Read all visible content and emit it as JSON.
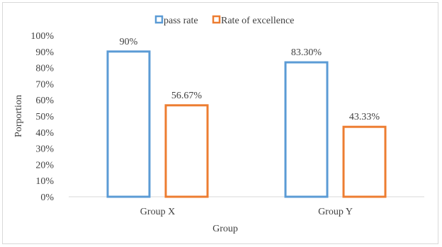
{
  "chart_data": {
    "type": "bar",
    "title": "",
    "xlabel": "Group",
    "ylabel": "Porportion",
    "categories": [
      "Group X",
      "Group Y"
    ],
    "series": [
      {
        "name": "pass rate",
        "color": "#5b9bd5",
        "values": [
          90,
          83.3
        ],
        "labels": [
          "90%",
          "83.30%"
        ]
      },
      {
        "name": "Rate of excellence",
        "color": "#ed7d31",
        "values": [
          56.67,
          43.33
        ],
        "labels": [
          "56.67%",
          "43.33%"
        ]
      }
    ],
    "ylim": [
      0,
      100
    ],
    "yticks": [
      0,
      10,
      20,
      30,
      40,
      50,
      60,
      70,
      80,
      90,
      100
    ],
    "ytick_labels": [
      "0%",
      "10%",
      "20%",
      "30%",
      "40%",
      "50%",
      "60%",
      "70%",
      "80%",
      "90%",
      "100%"
    ],
    "grid": false,
    "bar_style": "outlined",
    "legend_position": "top-center"
  }
}
